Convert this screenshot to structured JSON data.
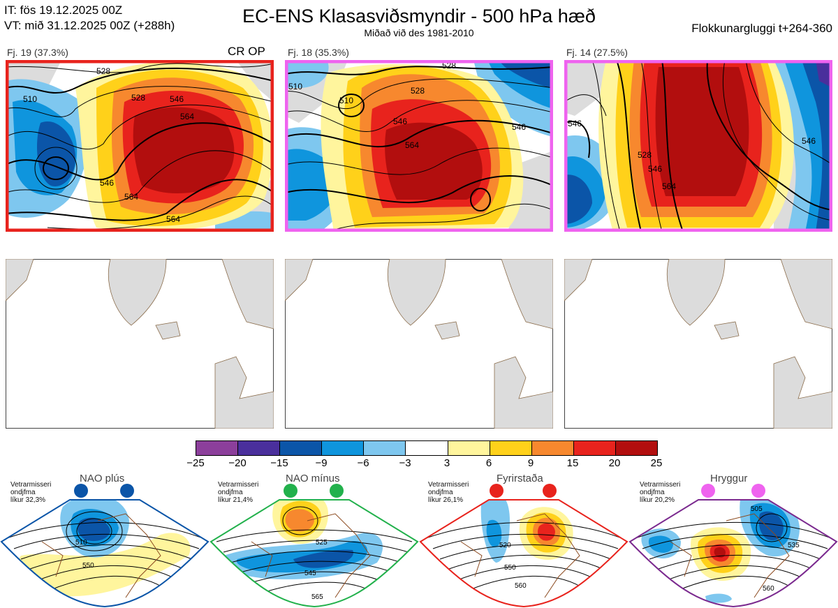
{
  "header": {
    "it_line": "IT: fös 19.12.2025 00Z",
    "vt_line": "VT: mið 31.12.2025 00Z  (+288h)",
    "title": "EC-ENS Klasasviðsmyndir - 500 hPa hæð",
    "subtitle": "Miðað við des 1981-2010",
    "window": "Flokkunargluggi t+264-360"
  },
  "panels": [
    {
      "label": "Fj. 19 (37.3%)",
      "extra": "CR OP",
      "border_color": "#e8231d",
      "contour_labels": [
        "510",
        "528",
        "546",
        "564",
        "546",
        "564",
        "564",
        "528"
      ]
    },
    {
      "label": "Fj. 18 (35.3%)",
      "extra": "",
      "border_color": "#ef63ef",
      "contour_labels": [
        "510",
        "510",
        "528",
        "546",
        "564",
        "546",
        "528"
      ]
    },
    {
      "label": "Fj. 14 (27.5%)",
      "extra": "",
      "border_color": "#ef63ef",
      "contour_labels": [
        "546",
        "528",
        "546",
        "564",
        "546"
      ]
    }
  ],
  "colorbar": {
    "ticks": [
      "−25",
      "−20",
      "−15",
      "−9",
      "−6",
      "−3",
      "3",
      "6",
      "9",
      "15",
      "20",
      "25"
    ],
    "colors": [
      "#8c3f9b",
      "#4a2f9c",
      "#0b55a8",
      "#0f95dd",
      "#7ec7ef",
      "#ffffff",
      "#fff59d",
      "#ffd11a",
      "#f7882e",
      "#e8231d",
      "#b20e0e"
    ]
  },
  "regimes": [
    {
      "name": "NAO plús",
      "small_lines": [
        "Vetrarmisseri",
        "ondjfma",
        "líkur 32,3%"
      ],
      "color": "#0b55a8",
      "labels": [
        "510",
        "550"
      ]
    },
    {
      "name": "NAO mínus",
      "small_lines": [
        "Vetrarmisseri",
        "ondjfma",
        "líkur 21,4%"
      ],
      "color": "#22b14c",
      "labels": [
        "525",
        "545",
        "565"
      ]
    },
    {
      "name": "Fyrirstaða",
      "small_lines": [
        "Vetrarmisseri",
        "ondjfma",
        "líkur 26,1%"
      ],
      "color": "#e8231d",
      "labels": [
        "520",
        "550",
        "560"
      ]
    },
    {
      "name": "Hryggur",
      "small_lines": [
        "Vetrarmisseri",
        "ondjfma",
        "líkur 20,2%"
      ],
      "color": "#ef63ef",
      "labels": [
        "505",
        "535",
        "560"
      ]
    }
  ]
}
